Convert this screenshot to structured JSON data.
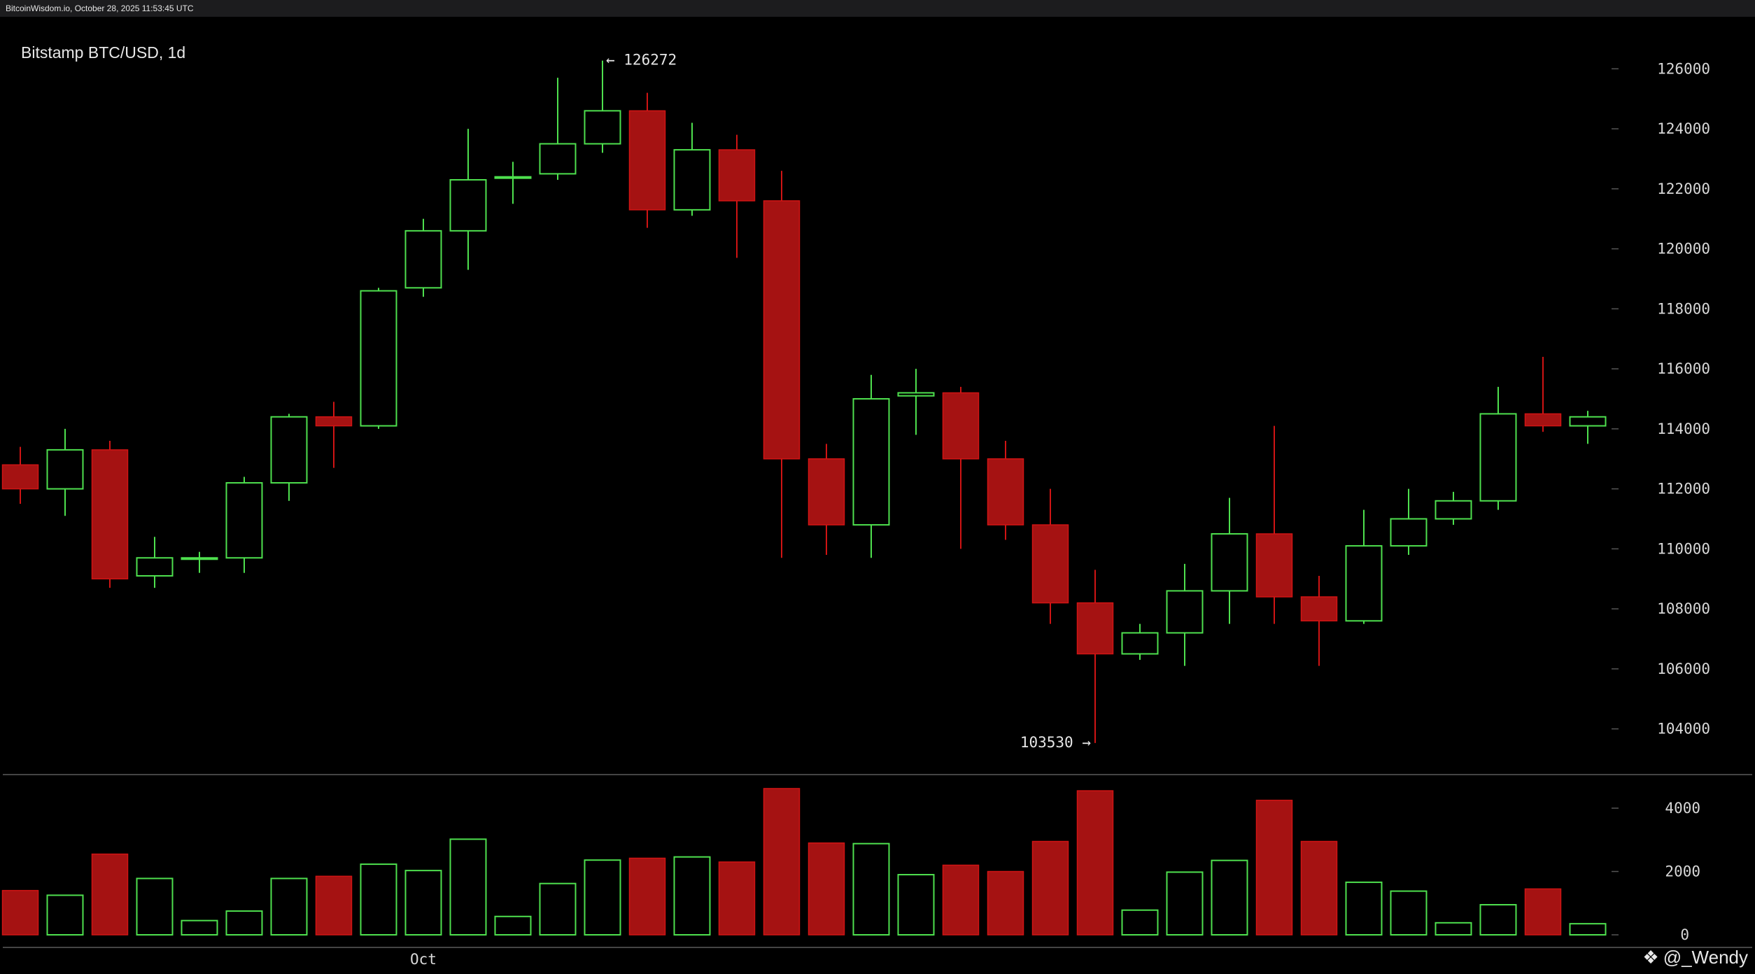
{
  "header": {
    "site_text": "BitcoinWisdom.io, October 28, 2025 11:53:45 UTC"
  },
  "watermark": {
    "text": "@_Wendy",
    "icon": "diamond-logo-icon"
  },
  "colors": {
    "up": "#4ee04e",
    "down": "#d01414",
    "down_fill": "#a51212",
    "grid": "#3a3a3a",
    "text": "#d8d8d8",
    "background": "#000000"
  },
  "chart_data": [
    {
      "type": "candlestick",
      "title": "Bitstamp BTC/USD, 1d",
      "ylim": [
        102500,
        127500
      ],
      "yticks": [
        104000,
        106000,
        108000,
        110000,
        112000,
        114000,
        116000,
        118000,
        120000,
        122000,
        124000,
        126000
      ],
      "xtick_labels": [
        {
          "index": 9,
          "label": "Oct"
        }
      ],
      "annotations": [
        {
          "index": 13,
          "price": 126272,
          "label": "← 126272",
          "side": "right"
        },
        {
          "index": 24,
          "price": 103530,
          "label": "103530 →",
          "side": "left"
        }
      ],
      "candles": [
        {
          "o": 112800,
          "h": 113400,
          "l": 111500,
          "c": 112000
        },
        {
          "o": 112000,
          "h": 114000,
          "l": 111100,
          "c": 113300
        },
        {
          "o": 113300,
          "h": 113600,
          "l": 108700,
          "c": 109000
        },
        {
          "o": 109100,
          "h": 110400,
          "l": 108700,
          "c": 109700
        },
        {
          "o": 109700,
          "h": 109900,
          "l": 109200,
          "c": 109700
        },
        {
          "o": 109700,
          "h": 112400,
          "l": 109200,
          "c": 112200
        },
        {
          "o": 112200,
          "h": 114500,
          "l": 111600,
          "c": 114400
        },
        {
          "o": 114400,
          "h": 114900,
          "l": 112700,
          "c": 114100
        },
        {
          "o": 114100,
          "h": 118700,
          "l": 114000,
          "c": 118600
        },
        {
          "o": 118700,
          "h": 121000,
          "l": 118400,
          "c": 120600
        },
        {
          "o": 120600,
          "h": 124000,
          "l": 119300,
          "c": 122300
        },
        {
          "o": 122400,
          "h": 122900,
          "l": 121500,
          "c": 122400
        },
        {
          "o": 122500,
          "h": 125700,
          "l": 122300,
          "c": 123500
        },
        {
          "o": 123500,
          "h": 126272,
          "l": 123200,
          "c": 124600
        },
        {
          "o": 124600,
          "h": 125200,
          "l": 120700,
          "c": 121300
        },
        {
          "o": 121300,
          "h": 124200,
          "l": 121100,
          "c": 123300
        },
        {
          "o": 123300,
          "h": 123800,
          "l": 119700,
          "c": 121600
        },
        {
          "o": 121600,
          "h": 122600,
          "l": 109700,
          "c": 113000
        },
        {
          "o": 113000,
          "h": 113500,
          "l": 109800,
          "c": 110800
        },
        {
          "o": 110800,
          "h": 115800,
          "l": 109700,
          "c": 115000
        },
        {
          "o": 115100,
          "h": 116000,
          "l": 113800,
          "c": 115200
        },
        {
          "o": 115200,
          "h": 115400,
          "l": 110000,
          "c": 113000
        },
        {
          "o": 113000,
          "h": 113600,
          "l": 110300,
          "c": 110800
        },
        {
          "o": 110800,
          "h": 112000,
          "l": 107500,
          "c": 108200
        },
        {
          "o": 108200,
          "h": 109300,
          "l": 103530,
          "c": 106500
        },
        {
          "o": 106500,
          "h": 107500,
          "l": 106300,
          "c": 107200
        },
        {
          "o": 107200,
          "h": 109500,
          "l": 106100,
          "c": 108600
        },
        {
          "o": 108600,
          "h": 111700,
          "l": 107500,
          "c": 110500
        },
        {
          "o": 110500,
          "h": 114100,
          "l": 107500,
          "c": 108400
        },
        {
          "o": 108400,
          "h": 109100,
          "l": 106100,
          "c": 107600
        },
        {
          "o": 107600,
          "h": 111300,
          "l": 107500,
          "c": 110100
        },
        {
          "o": 110100,
          "h": 112000,
          "l": 109800,
          "c": 111000
        },
        {
          "o": 111000,
          "h": 111900,
          "l": 110800,
          "c": 111600
        },
        {
          "o": 111600,
          "h": 115400,
          "l": 111300,
          "c": 114500
        },
        {
          "o": 114500,
          "h": 116400,
          "l": 113900,
          "c": 114100
        },
        {
          "o": 114100,
          "h": 114600,
          "l": 113500,
          "c": 114400
        }
      ]
    },
    {
      "type": "bar",
      "title": "",
      "ylim": [
        0,
        4800
      ],
      "yticks": [
        0,
        2000,
        4000
      ],
      "series": [
        {
          "values": [
            1400,
            1250,
            2550,
            1780,
            450,
            750,
            1780,
            1850,
            2230,
            2030,
            3020,
            580,
            1620,
            2360,
            2420,
            2460,
            2300,
            4620,
            2900,
            2880,
            1900,
            2200,
            2000,
            2950,
            4550,
            780,
            1980,
            2350,
            4250,
            2950,
            1660,
            1380,
            380,
            950,
            1450,
            350
          ]
        }
      ]
    }
  ]
}
